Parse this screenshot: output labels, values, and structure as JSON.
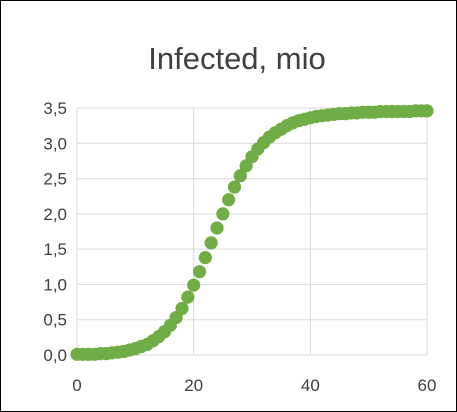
{
  "chart_data": {
    "type": "scatter",
    "title": "Infected, mio",
    "xlabel": "",
    "ylabel": "",
    "xlim": [
      0,
      60
    ],
    "ylim": [
      0,
      3.5
    ],
    "x_ticks": [
      "0",
      "20",
      "40",
      "60"
    ],
    "y_ticks": [
      "0,0",
      "0,5",
      "1,0",
      "1,5",
      "2,0",
      "2,5",
      "3,0",
      "3,5"
    ],
    "grid": true,
    "legend": "none",
    "marker_color": "#70AD47",
    "grid_color": "#D9D9D9",
    "x": [
      0,
      1,
      2,
      3,
      4,
      5,
      6,
      7,
      8,
      9,
      10,
      11,
      12,
      13,
      14,
      15,
      16,
      17,
      18,
      19,
      20,
      21,
      22,
      23,
      24,
      25,
      26,
      27,
      28,
      29,
      30,
      31,
      32,
      33,
      34,
      35,
      36,
      37,
      38,
      39,
      40,
      41,
      42,
      43,
      44,
      45,
      46,
      47,
      48,
      49,
      50,
      51,
      52,
      53,
      54,
      55,
      56,
      57,
      58,
      59,
      60
    ],
    "values": [
      0.01,
      0.01,
      0.01,
      0.01,
      0.02,
      0.02,
      0.03,
      0.04,
      0.05,
      0.07,
      0.09,
      0.12,
      0.15,
      0.2,
      0.26,
      0.33,
      0.42,
      0.53,
      0.66,
      0.82,
      0.99,
      1.18,
      1.38,
      1.59,
      1.8,
      2.0,
      2.2,
      2.38,
      2.54,
      2.68,
      2.81,
      2.92,
      3.01,
      3.09,
      3.15,
      3.2,
      3.25,
      3.29,
      3.32,
      3.34,
      3.36,
      3.38,
      3.39,
      3.4,
      3.41,
      3.42,
      3.42,
      3.43,
      3.43,
      3.44,
      3.44,
      3.44,
      3.45,
      3.45,
      3.45,
      3.45,
      3.45,
      3.45,
      3.46,
      3.46,
      3.46
    ]
  }
}
